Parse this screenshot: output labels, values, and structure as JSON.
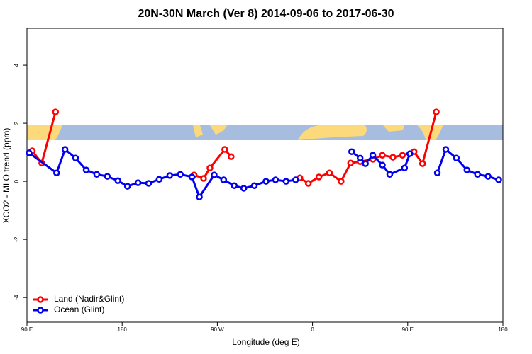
{
  "chart_data": {
    "type": "line",
    "title": "20N-30N March (Ver 8)   2014-09-06 to 2017-06-30",
    "x_label": "Longitude (deg E)",
    "y_label": "XCO2 - MLO trend (ppm)",
    "xlim": [
      90,
      540
    ],
    "ylim": [
      -4.85,
      5.27
    ],
    "xticks": [
      {
        "value": 90,
        "label": "90 E"
      },
      {
        "value": 180,
        "label": "180"
      },
      {
        "value": 270,
        "label": "90 W"
      },
      {
        "value": 360,
        "label": "0"
      },
      {
        "value": 450,
        "label": "90 E"
      },
      {
        "value": 540,
        "label": "180"
      }
    ],
    "yticks": [
      -4,
      -2,
      0,
      2,
      4
    ],
    "legend": "bottom-left",
    "series": [
      {
        "name": "Land (Nadir&Glint)",
        "color": "#ff0000",
        "x": [
          95,
          104,
          117,
          null,
          248,
          257,
          263,
          277,
          283,
          null,
          348,
          356,
          366,
          376,
          387,
          396,
          405,
          417,
          426,
          436,
          445,
          456,
          464,
          477
        ],
        "values": [
          1.05,
          0.63,
          2.39,
          null,
          0.22,
          0.1,
          0.46,
          1.1,
          0.85,
          null,
          0.12,
          -0.07,
          0.15,
          0.29,
          0.0,
          0.63,
          0.68,
          0.76,
          0.9,
          0.83,
          0.9,
          1.02,
          0.61,
          2.39
        ]
      },
      {
        "name": "Ocean (Glint)",
        "color": "#0000ee",
        "x": [
          92,
          118,
          126,
          136,
          146,
          156,
          166,
          176,
          185,
          195,
          205,
          215,
          225,
          235,
          246,
          253,
          267,
          276,
          286,
          295,
          305,
          316,
          325,
          335,
          344,
          null,
          397,
          405,
          410,
          417,
          426,
          433,
          447,
          452,
          null,
          478,
          486,
          496,
          506,
          516,
          526,
          536
        ],
        "values": [
          0.98,
          0.29,
          1.1,
          0.8,
          0.39,
          0.24,
          0.17,
          0.02,
          -0.17,
          -0.05,
          -0.07,
          0.07,
          0.2,
          0.24,
          0.15,
          -0.54,
          0.22,
          0.05,
          -0.15,
          -0.24,
          -0.15,
          0.0,
          0.05,
          0.0,
          0.05,
          null,
          1.02,
          0.8,
          0.61,
          0.9,
          0.56,
          0.24,
          0.46,
          0.95,
          null,
          0.29,
          1.1,
          0.8,
          0.39,
          0.24,
          0.17,
          0.05
        ]
      }
    ]
  }
}
